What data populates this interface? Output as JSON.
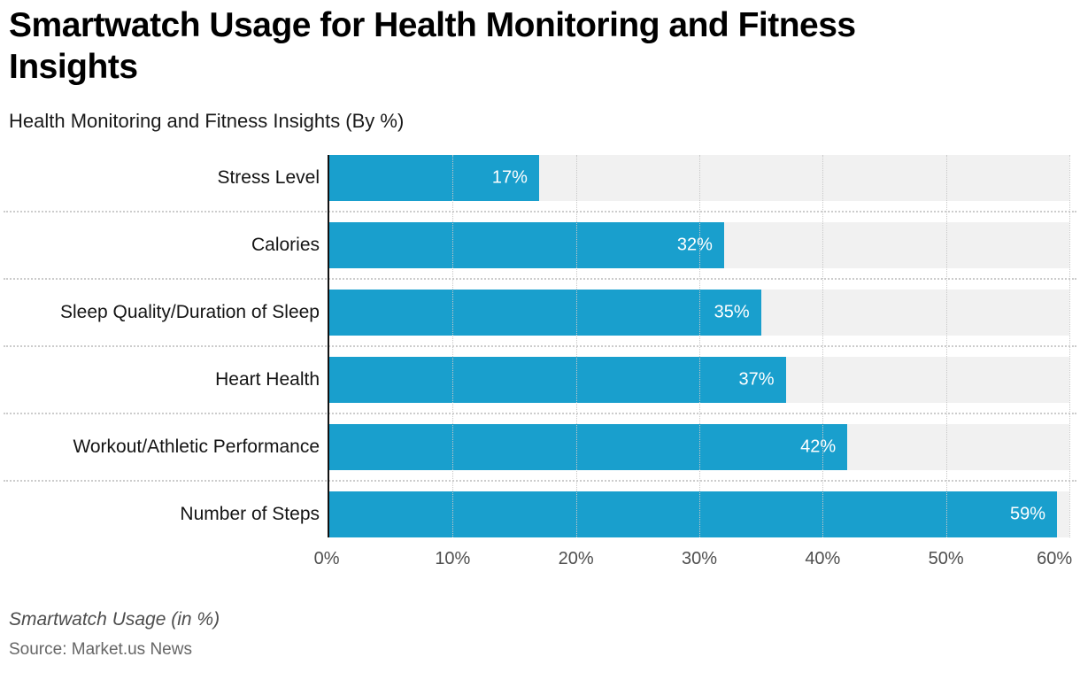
{
  "header": {
    "title": "Smartwatch Usage for Health Monitoring and Fitness Insights",
    "subtitle": "Health Monitoring and Fitness Insights (By %)"
  },
  "footer": {
    "notes": "Smartwatch Usage (in %)",
    "source": "Source: Market.us News"
  },
  "chart_data": {
    "type": "bar",
    "orientation": "horizontal",
    "title": "Smartwatch Usage for Health Monitoring and Fitness Insights",
    "subtitle": "Health Monitoring and Fitness Insights (By %)",
    "categories": [
      "Stress Level",
      "Calories",
      "Sleep Quality/Duration of Sleep",
      "Heart Health",
      "Workout/Athletic Performance",
      "Number of Steps"
    ],
    "values": [
      17,
      32,
      35,
      37,
      42,
      59
    ],
    "value_labels": [
      "17%",
      "32%",
      "35%",
      "37%",
      "42%",
      "59%"
    ],
    "x_ticks": [
      "0%",
      "10%",
      "20%",
      "30%",
      "40%",
      "50%",
      "60%"
    ],
    "xlim": [
      0,
      60
    ],
    "grid": "vertical-dotted",
    "legend": "none",
    "colors": {
      "bar": "#199FCD",
      "track": "#F1F1F1",
      "gridline": "#C8C8C8",
      "separator": "#CCCCCC",
      "axis": "#111111",
      "value_text": "#FFFFFF"
    }
  }
}
